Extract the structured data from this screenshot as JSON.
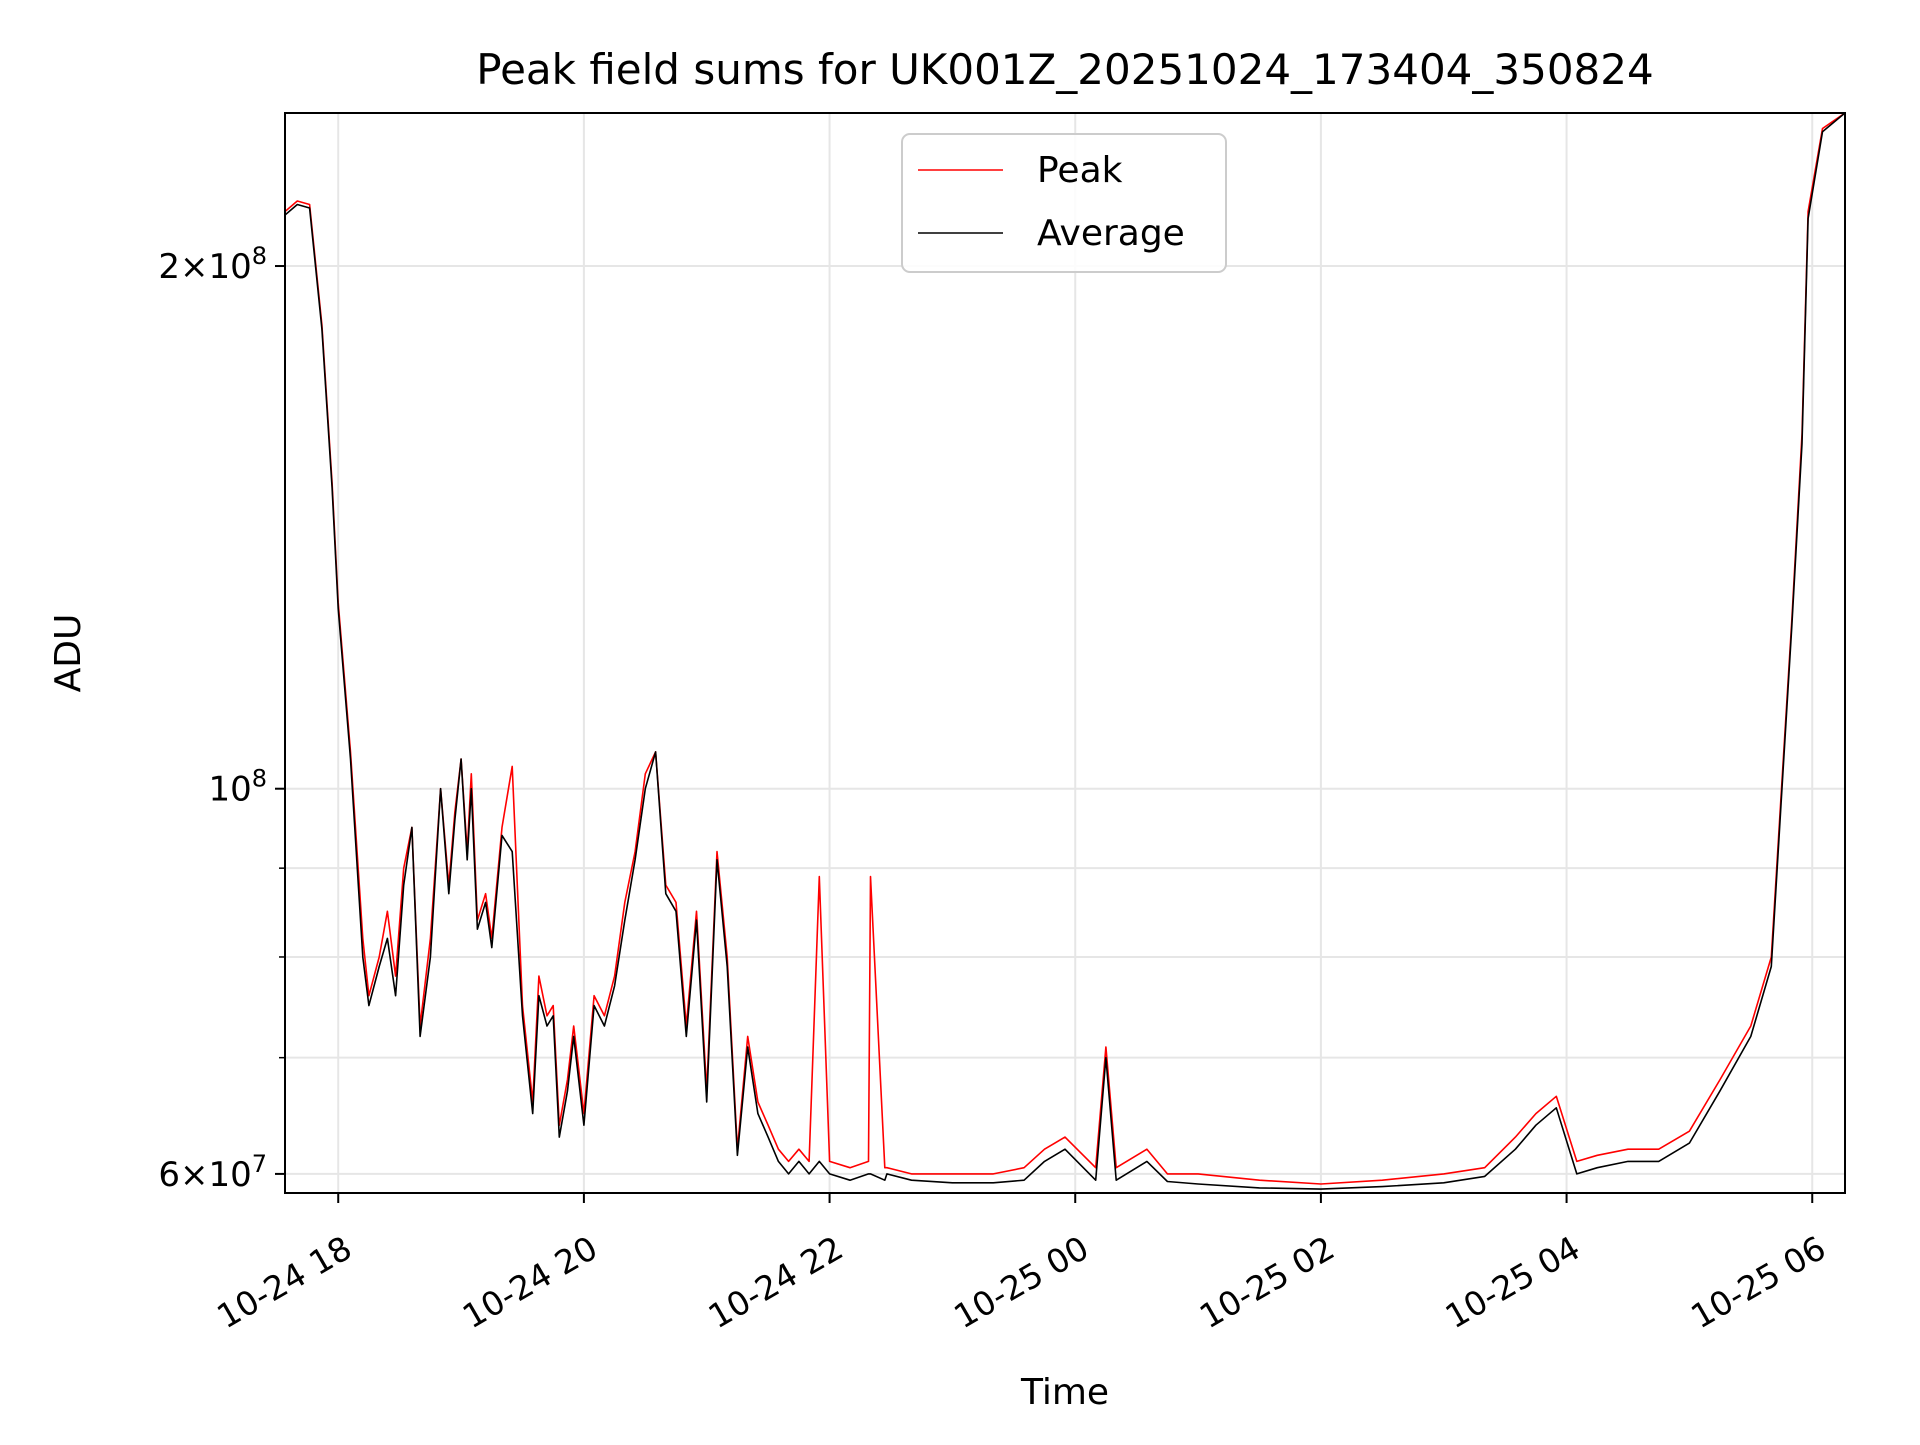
{
  "chart_data": {
    "type": "line",
    "title": "Peak field sums for UK001Z_20251024_173404_350824",
    "xlabel": "Time",
    "ylabel": "ADU",
    "y_scale": "log",
    "xlim": [
      "2025-10-24 17:34",
      "2025-10-25 06:16"
    ],
    "ylim": [
      58500000,
      245000000
    ],
    "grid": true,
    "legend_position": "upper center",
    "x_ticks": [
      {
        "value": "2025-10-24 18:00",
        "label": "10-24 18"
      },
      {
        "value": "2025-10-24 20:00",
        "label": "10-24 20"
      },
      {
        "value": "2025-10-24 22:00",
        "label": "10-24 22"
      },
      {
        "value": "2025-10-25 00:00",
        "label": "10-25 00"
      },
      {
        "value": "2025-10-25 02:00",
        "label": "10-25 02"
      },
      {
        "value": "2025-10-25 04:00",
        "label": "10-25 04"
      },
      {
        "value": "2025-10-25 06:00",
        "label": "10-25 06"
      }
    ],
    "y_ticks": [
      {
        "value": 60000000,
        "base": "6",
        "exp": "7"
      },
      {
        "value": 100000000,
        "base": "",
        "exp": "8"
      },
      {
        "value": 200000000,
        "base": "2",
        "exp": "8"
      }
    ],
    "y_minor_ticks": [
      70000000,
      80000000,
      90000000
    ],
    "colors": {
      "Peak": "#ff0000",
      "Average": "#000000"
    },
    "series": [
      {
        "name": "Peak",
        "color": "#ff0000",
        "x": [
          "2025-10-24 17:34",
          "2025-10-24 17:40",
          "2025-10-24 17:46",
          "2025-10-24 17:52",
          "2025-10-24 17:57",
          "2025-10-24 18:00",
          "2025-10-24 18:06",
          "2025-10-24 18:12",
          "2025-10-24 18:15",
          "2025-10-24 18:20",
          "2025-10-24 18:24",
          "2025-10-24 18:28",
          "2025-10-24 18:32",
          "2025-10-24 18:36",
          "2025-10-24 18:40",
          "2025-10-24 18:45",
          "2025-10-24 18:50",
          "2025-10-24 18:54",
          "2025-10-24 18:57",
          "2025-10-24 19:00",
          "2025-10-24 19:03",
          "2025-10-24 19:05",
          "2025-10-24 19:08",
          "2025-10-24 19:12",
          "2025-10-24 19:15",
          "2025-10-24 19:20",
          "2025-10-24 19:25",
          "2025-10-24 19:30",
          "2025-10-24 19:35",
          "2025-10-24 19:38",
          "2025-10-24 19:42",
          "2025-10-24 19:45",
          "2025-10-24 19:48",
          "2025-10-24 19:52",
          "2025-10-24 19:55",
          "2025-10-24 20:00",
          "2025-10-24 20:05",
          "2025-10-24 20:10",
          "2025-10-24 20:15",
          "2025-10-24 20:20",
          "2025-10-24 20:25",
          "2025-10-24 20:30",
          "2025-10-24 20:35",
          "2025-10-24 20:40",
          "2025-10-24 20:45",
          "2025-10-24 20:50",
          "2025-10-24 20:55",
          "2025-10-24 21:00",
          "2025-10-24 21:05",
          "2025-10-24 21:10",
          "2025-10-24 21:15",
          "2025-10-24 21:20",
          "2025-10-24 21:25",
          "2025-10-24 21:30",
          "2025-10-24 21:35",
          "2025-10-24 21:40",
          "2025-10-24 21:45",
          "2025-10-24 21:50",
          "2025-10-24 21:55",
          "2025-10-24 22:00",
          "2025-10-24 22:10",
          "2025-10-24 22:19",
          "2025-10-24 22:20",
          "2025-10-24 22:27",
          "2025-10-24 22:28",
          "2025-10-24 22:40",
          "2025-10-24 23:00",
          "2025-10-24 23:20",
          "2025-10-24 23:35",
          "2025-10-24 23:45",
          "2025-10-24 23:55",
          "2025-10-25 00:10",
          "2025-10-25 00:15",
          "2025-10-25 00:20",
          "2025-10-25 00:35",
          "2025-10-25 00:45",
          "2025-10-25 01:00",
          "2025-10-25 01:30",
          "2025-10-25 02:00",
          "2025-10-25 02:30",
          "2025-10-25 03:00",
          "2025-10-25 03:20",
          "2025-10-25 03:35",
          "2025-10-25 03:45",
          "2025-10-25 03:55",
          "2025-10-25 04:05",
          "2025-10-25 04:15",
          "2025-10-25 04:30",
          "2025-10-25 04:45",
          "2025-10-25 05:00",
          "2025-10-25 05:15",
          "2025-10-25 05:30",
          "2025-10-25 05:40",
          "2025-10-25 05:45",
          "2025-10-25 05:50",
          "2025-10-25 05:55",
          "2025-10-25 05:58",
          "2025-10-25 06:05",
          "2025-10-25 06:16"
        ],
        "values": [
          215000000,
          218000000,
          217000000,
          185000000,
          150000000,
          128000000,
          105000000,
          82000000,
          76000000,
          80000000,
          85000000,
          78000000,
          90000000,
          95000000,
          73000000,
          82000000,
          100000000,
          88000000,
          97000000,
          104000000,
          92000000,
          102000000,
          84000000,
          87000000,
          82000000,
          95000000,
          103000000,
          75000000,
          66000000,
          78000000,
          74000000,
          75000000,
          64000000,
          68000000,
          73000000,
          65000000,
          76000000,
          74000000,
          78000000,
          86000000,
          92000000,
          102000000,
          105000000,
          88000000,
          86000000,
          73000000,
          85000000,
          67000000,
          92000000,
          80000000,
          62000000,
          72000000,
          66000000,
          64000000,
          62000000,
          61000000,
          62000000,
          61000000,
          89000000,
          61000000,
          60500000,
          61000000,
          89000000,
          60500000,
          60500000,
          60000000,
          60000000,
          60000000,
          60500000,
          62000000,
          63000000,
          60500000,
          71000000,
          60500000,
          62000000,
          60000000,
          60000000,
          59500000,
          59200000,
          59500000,
          60000000,
          60500000,
          63000000,
          65000000,
          66500000,
          61000000,
          61500000,
          62000000,
          62000000,
          63500000,
          68000000,
          73000000,
          80000000,
          100000000,
          125000000,
          160000000,
          215000000,
          240000000,
          245000000
        ]
      },
      {
        "name": "Average",
        "color": "#000000",
        "x": [
          "2025-10-24 17:34",
          "2025-10-24 17:40",
          "2025-10-24 17:46",
          "2025-10-24 17:52",
          "2025-10-24 17:57",
          "2025-10-24 18:00",
          "2025-10-24 18:06",
          "2025-10-24 18:12",
          "2025-10-24 18:15",
          "2025-10-24 18:20",
          "2025-10-24 18:24",
          "2025-10-24 18:28",
          "2025-10-24 18:32",
          "2025-10-24 18:36",
          "2025-10-24 18:40",
          "2025-10-24 18:45",
          "2025-10-24 18:50",
          "2025-10-24 18:54",
          "2025-10-24 18:57",
          "2025-10-24 19:00",
          "2025-10-24 19:03",
          "2025-10-24 19:05",
          "2025-10-24 19:08",
          "2025-10-24 19:12",
          "2025-10-24 19:15",
          "2025-10-24 19:20",
          "2025-10-24 19:25",
          "2025-10-24 19:30",
          "2025-10-24 19:35",
          "2025-10-24 19:38",
          "2025-10-24 19:42",
          "2025-10-24 19:45",
          "2025-10-24 19:48",
          "2025-10-24 19:52",
          "2025-10-24 19:55",
          "2025-10-24 20:00",
          "2025-10-24 20:05",
          "2025-10-24 20:10",
          "2025-10-24 20:15",
          "2025-10-24 20:20",
          "2025-10-24 20:25",
          "2025-10-24 20:30",
          "2025-10-24 20:35",
          "2025-10-24 20:40",
          "2025-10-24 20:45",
          "2025-10-24 20:50",
          "2025-10-24 20:55",
          "2025-10-24 21:00",
          "2025-10-24 21:05",
          "2025-10-24 21:10",
          "2025-10-24 21:15",
          "2025-10-24 21:20",
          "2025-10-24 21:25",
          "2025-10-24 21:30",
          "2025-10-24 21:35",
          "2025-10-24 21:40",
          "2025-10-24 21:45",
          "2025-10-24 21:50",
          "2025-10-24 21:55",
          "2025-10-24 22:00",
          "2025-10-24 22:10",
          "2025-10-24 22:19",
          "2025-10-24 22:20",
          "2025-10-24 22:27",
          "2025-10-24 22:28",
          "2025-10-24 22:40",
          "2025-10-24 23:00",
          "2025-10-24 23:20",
          "2025-10-24 23:35",
          "2025-10-24 23:45",
          "2025-10-24 23:55",
          "2025-10-25 00:10",
          "2025-10-25 00:15",
          "2025-10-25 00:20",
          "2025-10-25 00:35",
          "2025-10-25 00:45",
          "2025-10-25 01:00",
          "2025-10-25 01:30",
          "2025-10-25 02:00",
          "2025-10-25 02:30",
          "2025-10-25 03:00",
          "2025-10-25 03:20",
          "2025-10-25 03:35",
          "2025-10-25 03:45",
          "2025-10-25 03:55",
          "2025-10-25 04:05",
          "2025-10-25 04:15",
          "2025-10-25 04:30",
          "2025-10-25 04:45",
          "2025-10-25 05:00",
          "2025-10-25 05:15",
          "2025-10-25 05:30",
          "2025-10-25 05:40",
          "2025-10-25 05:45",
          "2025-10-25 05:50",
          "2025-10-25 05:55",
          "2025-10-25 05:58",
          "2025-10-25 06:05",
          "2025-10-25 06:16"
        ],
        "values": [
          214000000,
          217000000,
          216000000,
          184000000,
          149000000,
          127000000,
          104000000,
          80000000,
          75000000,
          79000000,
          82000000,
          76000000,
          88000000,
          95000000,
          72000000,
          80000000,
          100000000,
          87000000,
          96000000,
          104000000,
          91000000,
          100000000,
          83000000,
          86000000,
          81000000,
          94000000,
          92000000,
          74000000,
          65000000,
          76000000,
          73000000,
          74000000,
          63000000,
          67000000,
          72000000,
          64000000,
          75000000,
          73000000,
          77000000,
          84000000,
          91000000,
          100000000,
          105000000,
          87000000,
          85000000,
          72000000,
          84000000,
          66000000,
          91000000,
          79000000,
          61500000,
          71000000,
          65000000,
          63000000,
          61000000,
          60000000,
          61000000,
          60000000,
          61000000,
          60000000,
          59500000,
          60000000,
          60000000,
          59500000,
          60000000,
          59500000,
          59300000,
          59300000,
          59500000,
          61000000,
          62000000,
          59500000,
          70000000,
          59500000,
          61000000,
          59400000,
          59200000,
          58900000,
          58800000,
          59000000,
          59300000,
          59800000,
          62000000,
          64000000,
          65500000,
          60000000,
          60500000,
          61000000,
          61000000,
          62500000,
          67000000,
          72000000,
          79000000,
          99000000,
          124000000,
          158000000,
          213000000,
          239000000,
          245000000
        ]
      }
    ]
  }
}
